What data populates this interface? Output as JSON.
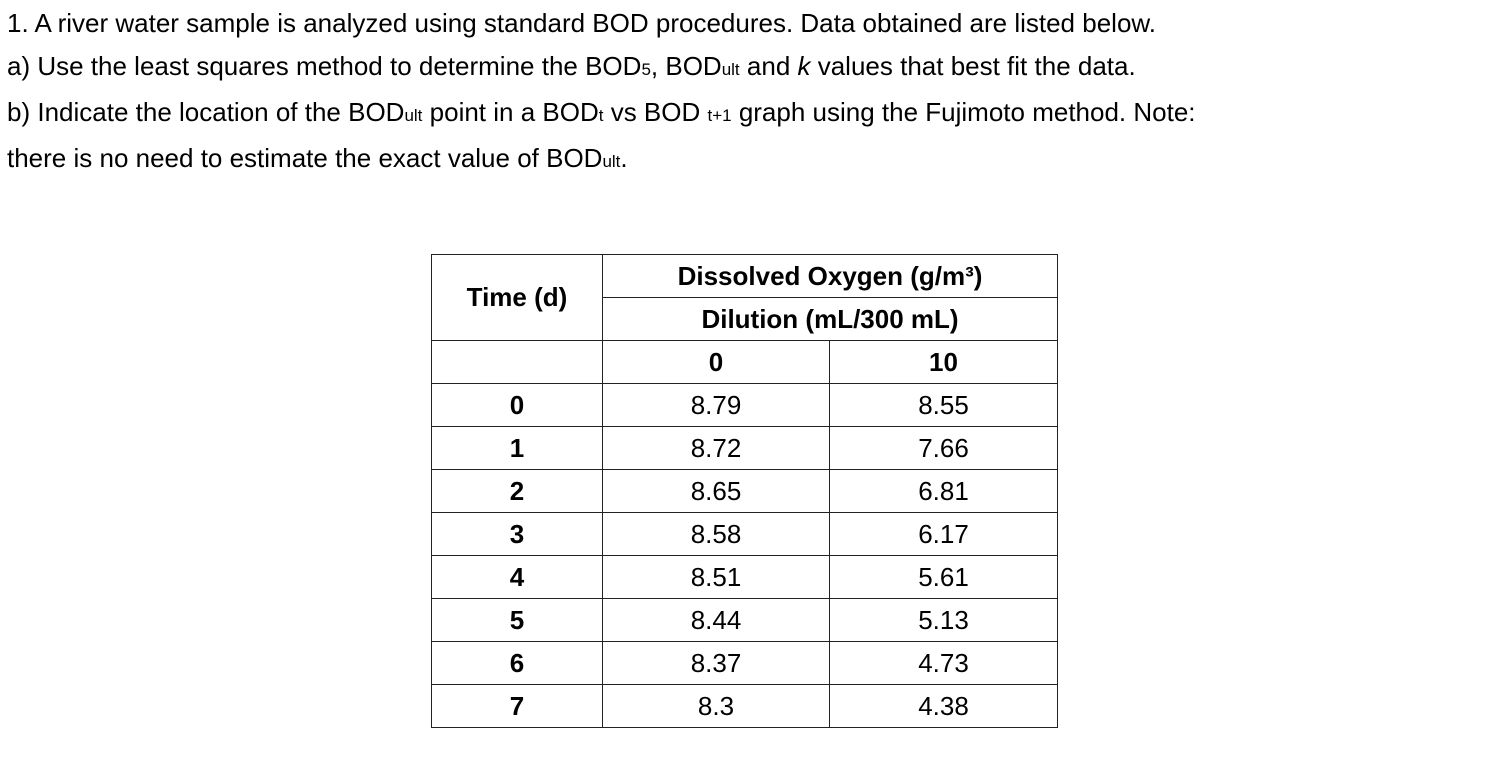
{
  "question": {
    "lines": [
      [
        "1. A river water sample is analyzed using standard BOD procedures. Data obtained are listed below."
      ],
      [
        "a) Use the least squares method to determine the BOD",
        {
          "sub": "5"
        },
        ", BOD",
        {
          "sub": "ult"
        },
        " and ",
        {
          "italic": "k"
        },
        " values that best fit the data."
      ],
      [
        "b) Indicate the location of the BOD",
        {
          "sub": "ult"
        },
        " point in a BOD",
        {
          "sub": "t"
        },
        " vs BOD ",
        {
          "sub": "t+1"
        },
        " graph using the Fujimoto method. Note:"
      ],
      [
        "there is no need to estimate the exact value of BOD",
        {
          "sub": "ult"
        },
        "."
      ]
    ]
  },
  "table": {
    "time_header": "Time (d)",
    "group_header": "Dissolved Oxygen (g/m³)",
    "sub_header": "Dilution (mL/300 mL)",
    "columns": [
      0,
      10
    ],
    "rows": [
      [
        0,
        8.79,
        8.55
      ],
      [
        1,
        8.72,
        7.66
      ],
      [
        2,
        8.65,
        6.81
      ],
      [
        3,
        8.58,
        6.17
      ],
      [
        4,
        8.51,
        5.61
      ],
      [
        5,
        8.44,
        5.13
      ],
      [
        6,
        8.37,
        4.73
      ],
      [
        7,
        8.3,
        4.38
      ]
    ]
  }
}
